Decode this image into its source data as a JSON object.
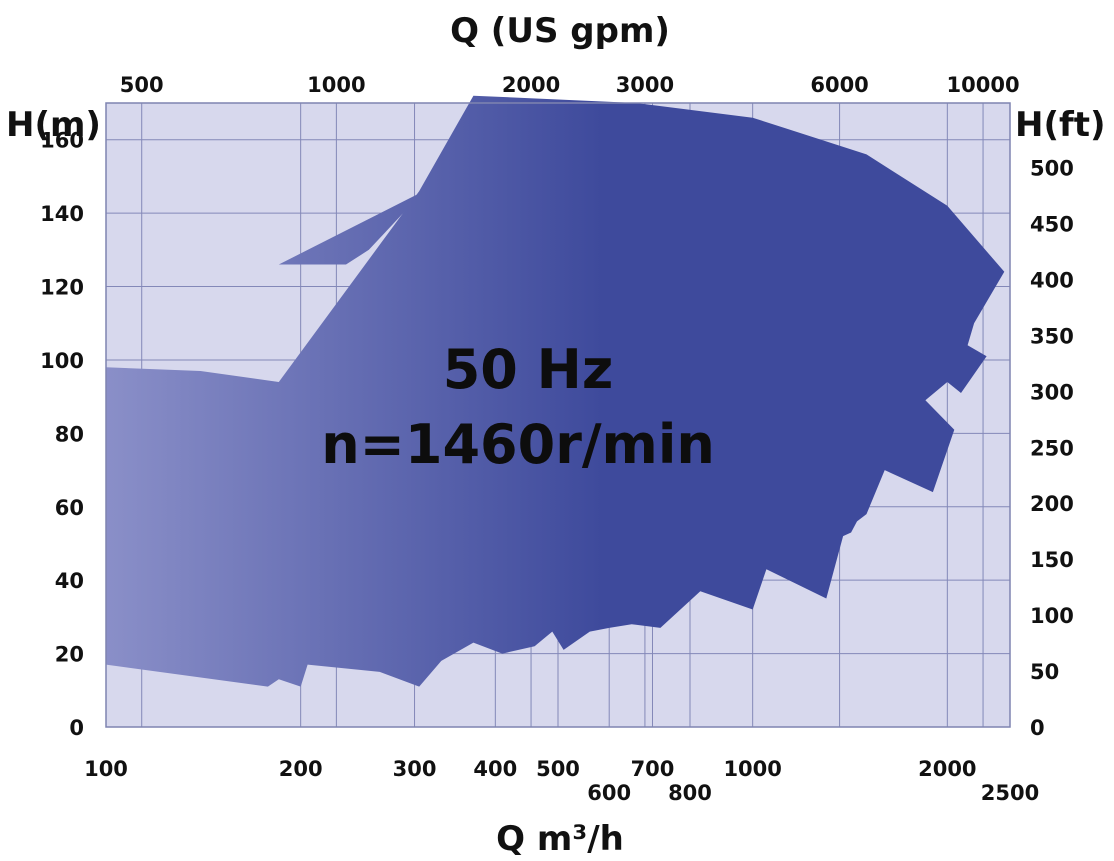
{
  "chart_data": {
    "type": "area",
    "title": "",
    "top_axis_label": "Q (US gpm)",
    "xlabel": "Q m³/h",
    "ylabel_left": "H(m)",
    "ylabel_right": "H(ft)",
    "annotation_line1": "50 Hz",
    "annotation_line2": "n=1460r/min",
    "x_scale": "log",
    "xlim": [
      100,
      2500
    ],
    "ylim": [
      0,
      170
    ],
    "grid": true,
    "x_ticks": [
      {
        "value": 100,
        "label": "100"
      },
      {
        "value": 200,
        "label": "200"
      },
      {
        "value": 300,
        "label": "300"
      },
      {
        "value": 400,
        "label": "400"
      },
      {
        "value": 500,
        "label": "500"
      },
      {
        "value": 600,
        "label": "600"
      },
      {
        "value": 700,
        "label": "700"
      },
      {
        "value": 800,
        "label": "800"
      },
      {
        "value": 1000,
        "label": "1000"
      },
      {
        "value": 2000,
        "label": "2000"
      },
      {
        "value": 2500,
        "label": "2500"
      }
    ],
    "x_ticks_top": [
      {
        "value": 500,
        "label": "500"
      },
      {
        "value": 1000,
        "label": "1000"
      },
      {
        "value": 2000,
        "label": "2000"
      },
      {
        "value": 3000,
        "label": "3000"
      },
      {
        "value": 6000,
        "label": "6000"
      },
      {
        "value": 10000,
        "label": "10000"
      }
    ],
    "y_ticks_left": [
      0,
      20,
      40,
      60,
      80,
      100,
      120,
      140,
      160
    ],
    "y_ticks_right": [
      0,
      50,
      100,
      150,
      200,
      250,
      300,
      350,
      400,
      450,
      500
    ],
    "colors": {
      "fill_light": "#8a8fc8",
      "fill_dark": "#3e4a9c",
      "plot_bg": "#d7d8ed",
      "grid": "#8388b8"
    },
    "series": [
      {
        "region": "operating-range",
        "points": [
          [
            100,
            98
          ],
          [
            140,
            97
          ],
          [
            185,
            94
          ],
          [
            305,
            146
          ],
          [
            370,
            172
          ],
          [
            660,
            170
          ],
          [
            1000,
            166
          ],
          [
            1500,
            156
          ],
          [
            2000,
            142
          ],
          [
            2450,
            124
          ],
          [
            2200,
            110
          ],
          [
            2150,
            104
          ],
          [
            2300,
            101
          ],
          [
            2100,
            91
          ],
          [
            2000,
            94
          ],
          [
            1850,
            89
          ],
          [
            2050,
            81
          ],
          [
            1900,
            64
          ],
          [
            1600,
            70
          ],
          [
            1500,
            58
          ],
          [
            1450,
            56
          ],
          [
            1420,
            53
          ],
          [
            1380,
            52
          ],
          [
            1300,
            35
          ],
          [
            1050,
            43
          ],
          [
            1000,
            32
          ],
          [
            830,
            37
          ],
          [
            720,
            27
          ],
          [
            650,
            28
          ],
          [
            600,
            27
          ],
          [
            560,
            26
          ],
          [
            510,
            21
          ],
          [
            490,
            26
          ],
          [
            460,
            22
          ],
          [
            410,
            20
          ],
          [
            370,
            23
          ],
          [
            330,
            18
          ],
          [
            305,
            11
          ],
          [
            265,
            15
          ],
          [
            205,
            17
          ],
          [
            200,
            11
          ],
          [
            185,
            13
          ],
          [
            178,
            11
          ],
          [
            100,
            17
          ]
        ]
      }
    ],
    "notch": [
      [
        185,
        126
      ],
      [
        235,
        126
      ],
      [
        255,
        130
      ],
      [
        310,
        146
      ]
    ]
  }
}
